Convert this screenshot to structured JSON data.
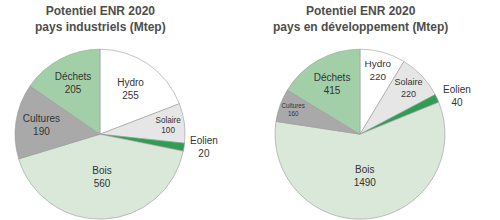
{
  "chart_data": [
    {
      "type": "pie",
      "title": "Potentiel ENR 2020\npays industriels (Mtep)",
      "categories": [
        "Hydro",
        "Solaire",
        "Eolien",
        "Bois",
        "Cultures",
        "Déchets"
      ],
      "values": [
        255,
        100,
        20,
        560,
        190,
        205
      ],
      "colors": [
        "#ffffff",
        "#e6e6e6",
        "#2e9e55",
        "#d9e8d9",
        "#a9a9a9",
        "#a3cfa8"
      ],
      "data_labels": true
    },
    {
      "type": "pie",
      "title": "Potentiel ENR 2020\npays en développement (Mtep)",
      "categories": [
        "Hydro",
        "Solaire",
        "Eolien",
        "Bois",
        "Cultures",
        "Déchets"
      ],
      "values": [
        220,
        220,
        40,
        1490,
        160,
        415
      ],
      "colors": [
        "#ffffff",
        "#e6e6e6",
        "#2e9e55",
        "#d9e8d9",
        "#a9a9a9",
        "#a3cfa8"
      ],
      "data_labels": true
    }
  ]
}
